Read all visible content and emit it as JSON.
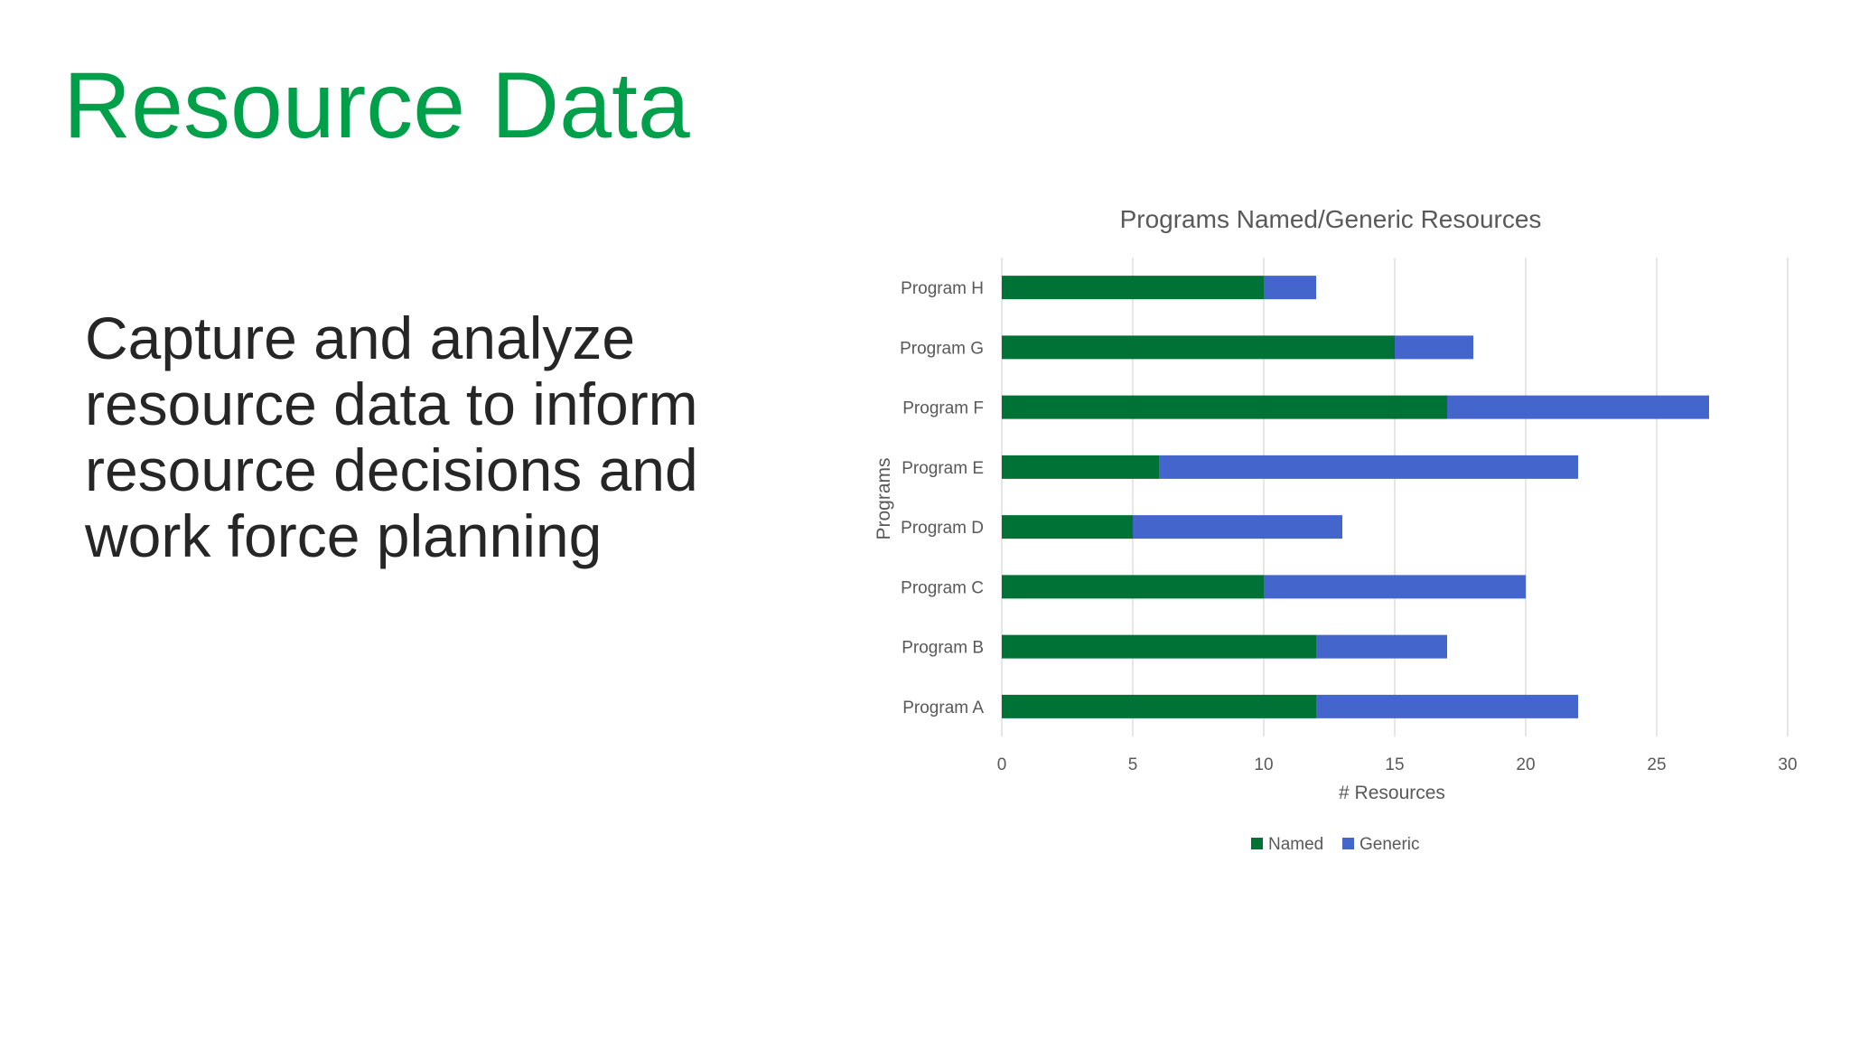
{
  "slide": {
    "title": "Resource Data",
    "body_lines": [
      "Capture and analyze",
      "resource data to inform",
      "resource decisions and",
      "work force planning"
    ]
  },
  "colors": {
    "title": "#00A04A",
    "named": "#007236",
    "generic": "#4466CC",
    "gridline": "#D9D9D9",
    "axis_text": "#595959",
    "chart_title": "#595959"
  },
  "chart_data": {
    "type": "bar",
    "orientation": "horizontal",
    "stacked": true,
    "title": "Programs Named/Generic Resources",
    "xlabel": "# Resources",
    "ylabel": "Programs",
    "categories": [
      "Program A",
      "Program B",
      "Program C",
      "Program D",
      "Program E",
      "Program F",
      "Program G",
      "Program H"
    ],
    "series": [
      {
        "name": "Named",
        "values": [
          12,
          12,
          10,
          5,
          6,
          17,
          15,
          10
        ]
      },
      {
        "name": "Generic",
        "values": [
          10,
          5,
          10,
          8,
          16,
          10,
          3,
          2
        ]
      }
    ],
    "xlim": [
      0,
      30
    ],
    "xticks": [
      0,
      5,
      10,
      15,
      20,
      25,
      30
    ],
    "grid": "vertical",
    "legend": "bottom"
  }
}
